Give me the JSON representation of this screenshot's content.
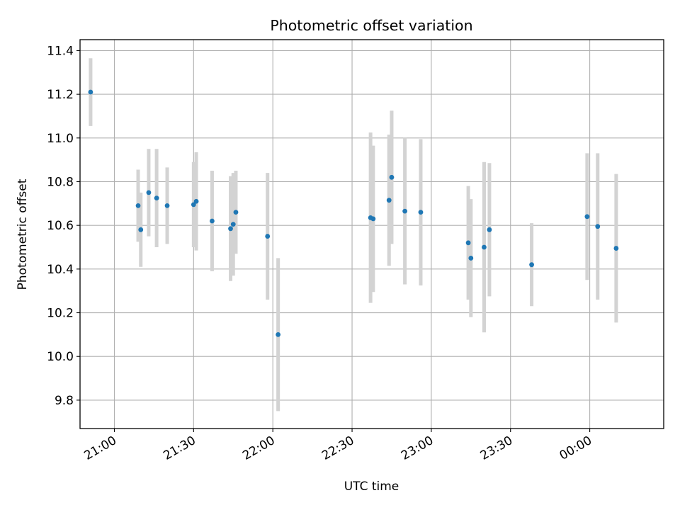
{
  "chart_data": {
    "type": "scatter",
    "title": "Photometric offset variation",
    "xlabel": "UTC time",
    "ylabel": "Photometric offset",
    "x_tick_labels": [
      "21:00",
      "21:30",
      "22:00",
      "22:30",
      "23:00",
      "23:30",
      "00:00"
    ],
    "y_tick_labels": [
      "9.8",
      "10.0",
      "10.2",
      "10.4",
      "10.6",
      "10.8",
      "11.0",
      "11.2",
      "11.4"
    ],
    "ylim": [
      9.67,
      11.45
    ],
    "xlim": [
      "20:47",
      "00:28"
    ],
    "grid": true,
    "point_color": "#1f77b4",
    "errorbar_color": "#d3d3d3",
    "series": [
      {
        "points": [
          {
            "t": "20:51",
            "y": 11.21,
            "err": 0.155
          },
          {
            "t": "21:09",
            "y": 10.69,
            "err": 0.165
          },
          {
            "t": "21:10",
            "y": 10.58,
            "err": 0.17
          },
          {
            "t": "21:13",
            "y": 10.75,
            "err": 0.2
          },
          {
            "t": "21:16",
            "y": 10.725,
            "err": 0.225
          },
          {
            "t": "21:20",
            "y": 10.69,
            "err": 0.175
          },
          {
            "t": "21:30",
            "y": 10.695,
            "err": 0.195
          },
          {
            "t": "21:31",
            "y": 10.71,
            "err": 0.225
          },
          {
            "t": "21:37",
            "y": 10.62,
            "err": 0.23
          },
          {
            "t": "21:44",
            "y": 10.585,
            "err": 0.24
          },
          {
            "t": "21:45",
            "y": 10.605,
            "err": 0.235
          },
          {
            "t": "21:46",
            "y": 10.66,
            "err": 0.19
          },
          {
            "t": "21:58",
            "y": 10.55,
            "err": 0.29
          },
          {
            "t": "22:02",
            "y": 10.1,
            "err": 0.35
          },
          {
            "t": "22:37",
            "y": 10.635,
            "err": 0.39
          },
          {
            "t": "22:38",
            "y": 10.63,
            "err": 0.335
          },
          {
            "t": "22:44",
            "y": 10.715,
            "err": 0.3
          },
          {
            "t": "22:45",
            "y": 10.82,
            "err": 0.305
          },
          {
            "t": "22:50",
            "y": 10.665,
            "err": 0.335
          },
          {
            "t": "22:56",
            "y": 10.66,
            "err": 0.335
          },
          {
            "t": "23:14",
            "y": 10.52,
            "err": 0.26
          },
          {
            "t": "23:15",
            "y": 10.45,
            "err": 0.27
          },
          {
            "t": "23:20",
            "y": 10.5,
            "err": 0.39
          },
          {
            "t": "23:22",
            "y": 10.58,
            "err": 0.305
          },
          {
            "t": "23:38",
            "y": 10.42,
            "err": 0.19
          },
          {
            "t": "23:59",
            "y": 10.64,
            "err": 0.29
          },
          {
            "t": "00:03",
            "y": 10.595,
            "err": 0.335
          },
          {
            "t": "00:10",
            "y": 10.495,
            "err": 0.34
          }
        ]
      }
    ]
  }
}
